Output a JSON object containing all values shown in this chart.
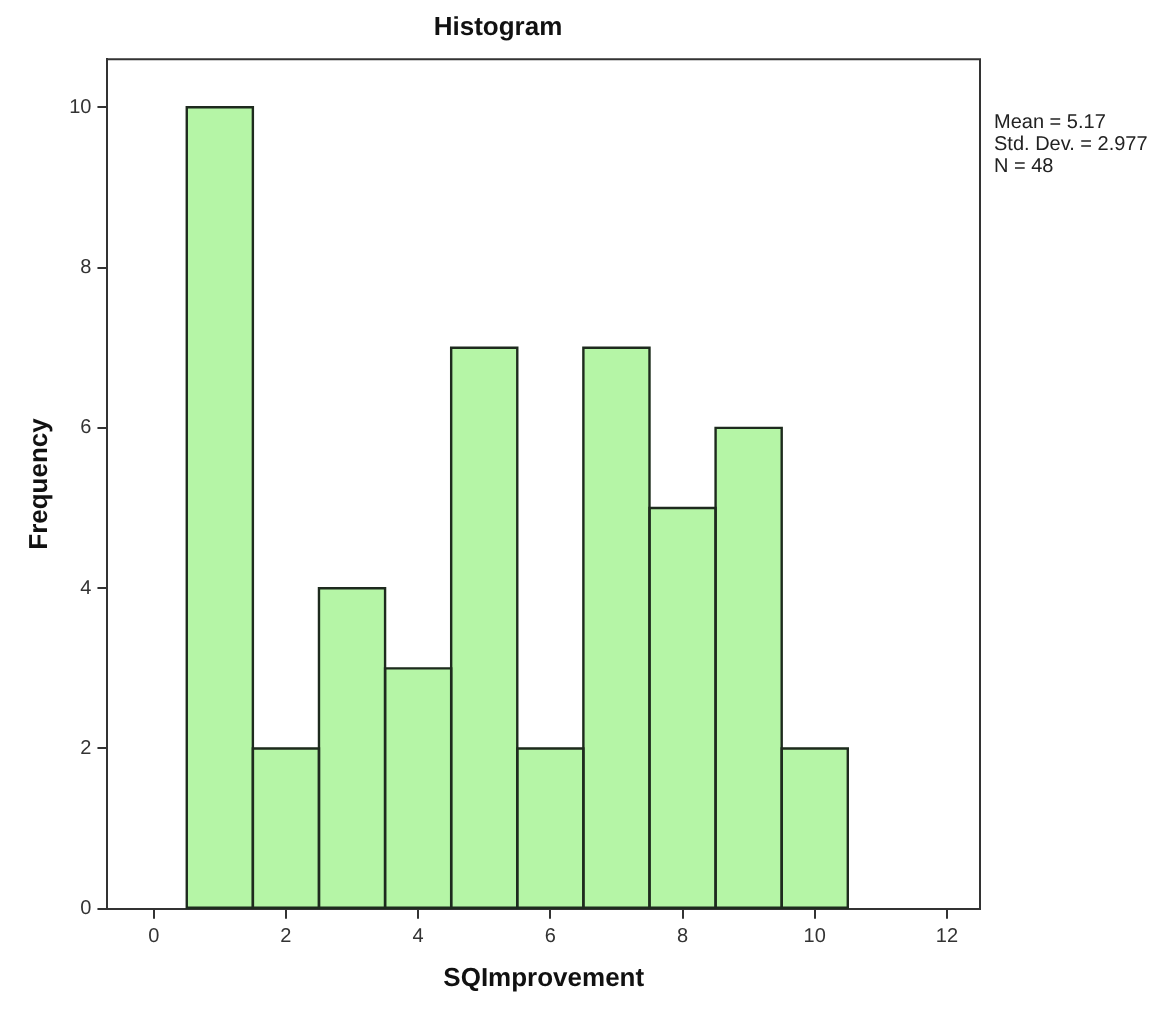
{
  "chart_data": {
    "type": "histogram",
    "title": "Histogram",
    "xlabel": "SQImprovement",
    "ylabel": "Frequency",
    "bins": [
      0.5,
      1.5,
      2.5,
      3.5,
      4.5,
      5.5,
      6.5,
      7.5,
      8.5,
      9.5,
      10.5
    ],
    "values": [
      10,
      2,
      4,
      3,
      7,
      2,
      7,
      5,
      6,
      2
    ],
    "color": "#b5f5a6",
    "xlim": [
      -0.7,
      12.5
    ],
    "xticks": [
      0,
      2,
      4,
      6,
      8,
      10,
      12
    ],
    "ylim": [
      0,
      10.6
    ],
    "yticks": [
      0,
      2,
      4,
      6,
      8,
      10
    ],
    "grid": false,
    "legend": false,
    "annotations": [
      "Mean = 5.17",
      "Std. Dev. = 2.977",
      "N = 48"
    ]
  }
}
